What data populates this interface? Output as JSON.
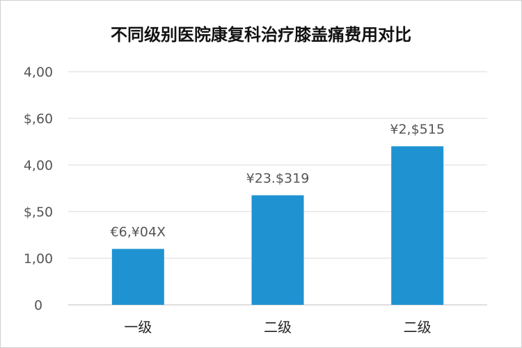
{
  "chart_data": {
    "type": "bar",
    "title": "不同级别医院康复科治疗膝盖痛费用对比",
    "xlabel": "",
    "ylabel": "",
    "categories": [
      "一级",
      "二级",
      "二级"
    ],
    "values": [
      1.2,
      2.35,
      3.4
    ],
    "value_labels": [
      "€6,¥04X",
      "¥23.$319",
      "¥2,$515"
    ],
    "ylim": [
      0,
      5
    ],
    "y_ticks": [
      0,
      1,
      2,
      3,
      4,
      5
    ],
    "y_tick_labels": [
      "0",
      "1,00",
      "$,50",
      "4,00",
      "$,60",
      "4,00"
    ],
    "grid": true,
    "legend": "none",
    "bar_color": "#1f93d1"
  }
}
